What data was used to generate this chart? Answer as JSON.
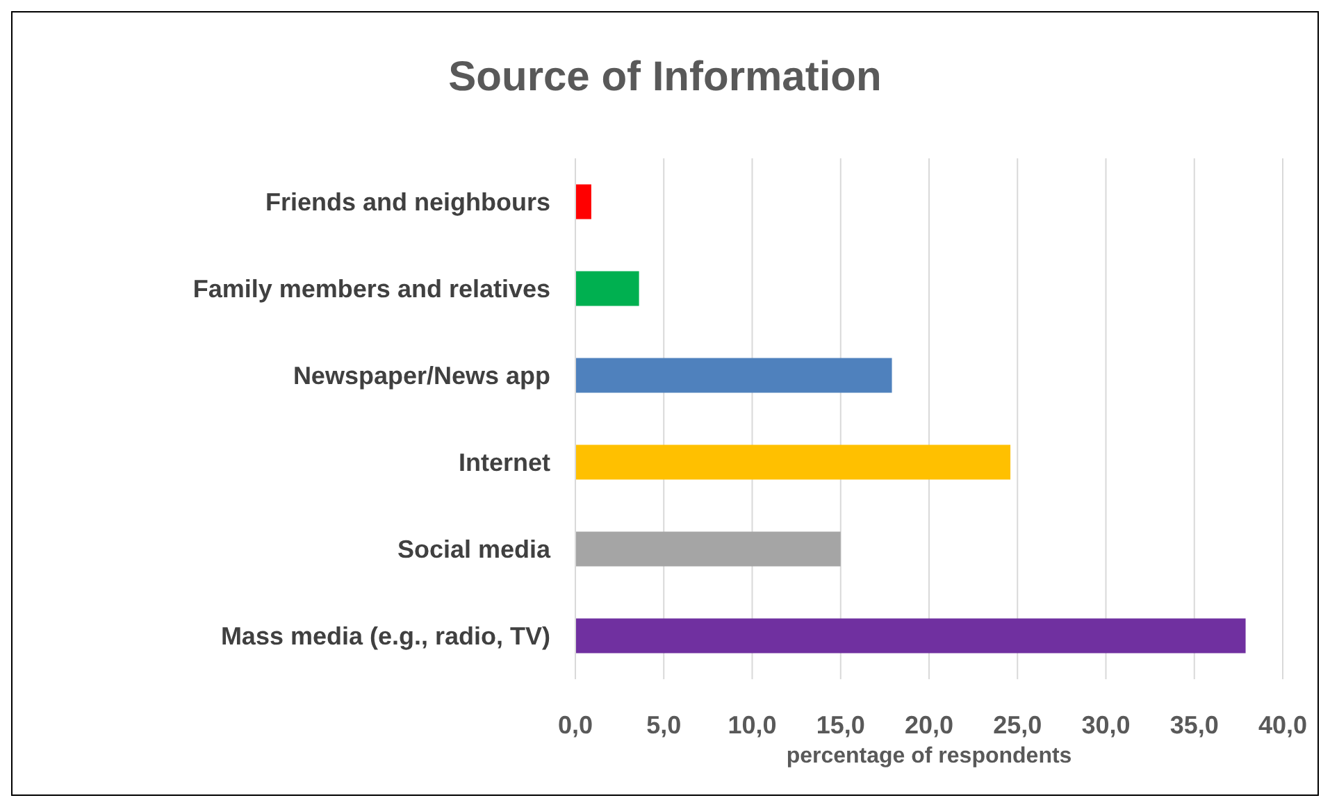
{
  "chart_data": {
    "type": "bar",
    "orientation": "horizontal",
    "title": "Source of Information",
    "xlabel": "percentage of respondents",
    "categories": [
      "Friends and neighbours",
      "Family members and relatives",
      "Newspaper/News app",
      "Internet",
      "Social media",
      "Mass media (e.g., radio, TV)"
    ],
    "values": [
      0.9,
      3.6,
      17.9,
      24.6,
      15.0,
      37.9
    ],
    "colors": [
      "#ff0000",
      "#00b050",
      "#4f81bd",
      "#ffc000",
      "#a5a5a5",
      "#7030a0"
    ],
    "xlim": [
      0,
      40
    ],
    "xticks": [
      {
        "value": 0,
        "label": "0,0"
      },
      {
        "value": 5,
        "label": "5,0"
      },
      {
        "value": 10,
        "label": "10,0"
      },
      {
        "value": 15,
        "label": "15,0"
      },
      {
        "value": 20,
        "label": "20,0"
      },
      {
        "value": 25,
        "label": "25,0"
      },
      {
        "value": 30,
        "label": "30,0"
      },
      {
        "value": 35,
        "label": "35,0"
      },
      {
        "value": 40,
        "label": "40,0"
      }
    ],
    "grid": "x"
  }
}
